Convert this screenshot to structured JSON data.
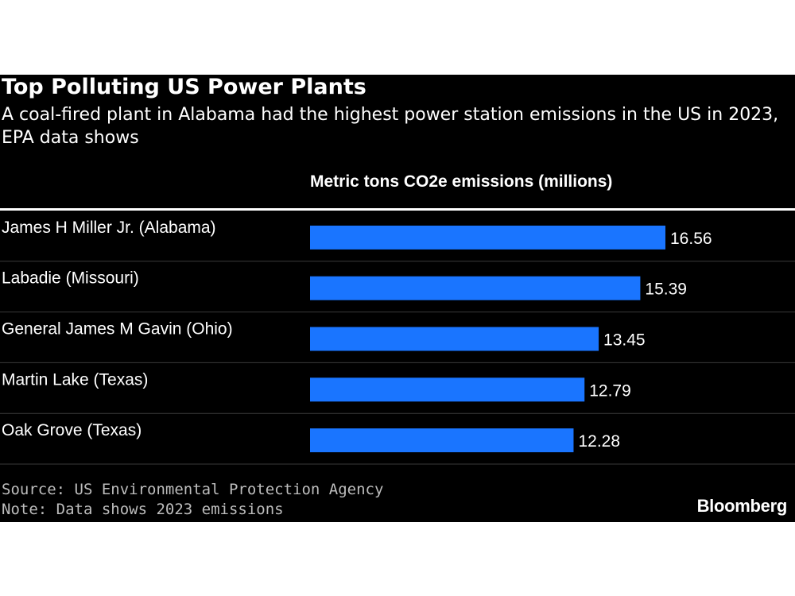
{
  "header": {
    "title": "Top Polluting US Power Plants",
    "subtitle": "A coal-fired plant in Alabama had the highest power station emissions in the US in 2023, EPA data shows"
  },
  "footer": {
    "source": "Source: US Environmental Protection Agency",
    "note": "Note: Data shows 2023 emissions",
    "brand": "Bloomberg"
  },
  "colors": {
    "background": "#000000",
    "bar": "#1a75ff",
    "text": "#ffffff",
    "muted_text": "#bdbdbd",
    "separator": "#3a3a3a"
  },
  "chart_data": {
    "type": "bar",
    "orientation": "horizontal",
    "title": "Top Polluting US Power Plants",
    "subtitle": "A coal-fired plant in Alabama had the highest power station emissions in the US in 2023, EPA data shows",
    "xlabel": "Metric tons CO2e emissions (millions)",
    "ylabel": "",
    "categories": [
      "James H Miller Jr. (Alabama)",
      "Labadie (Missouri)",
      "General James M Gavin (Ohio)",
      "Martin Lake (Texas)",
      "Oak Grove (Texas)"
    ],
    "values": [
      16.56,
      15.39,
      13.45,
      12.79,
      12.28
    ],
    "value_labels": [
      "16.56",
      "15.39",
      "13.45",
      "12.79",
      "12.28"
    ],
    "xlim": [
      0,
      16.56
    ],
    "grid": false,
    "legend": "none"
  }
}
